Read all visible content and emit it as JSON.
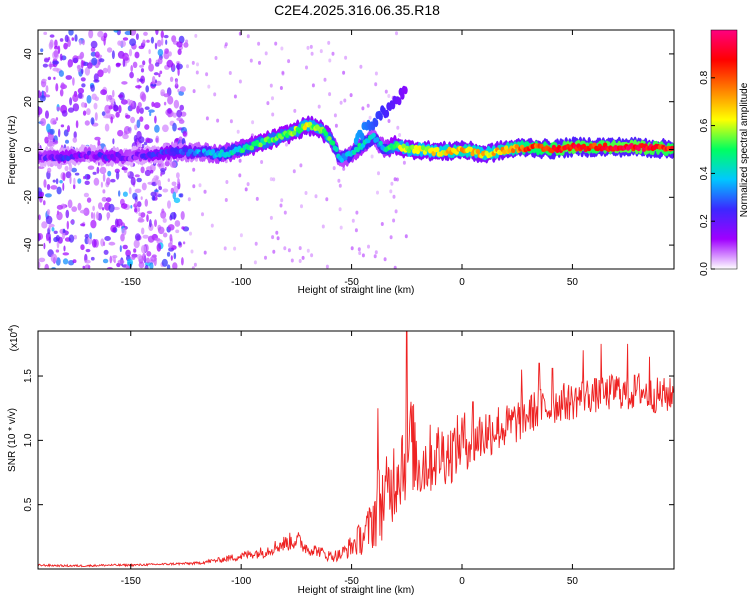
{
  "title": "C2E4.2025.316.06.35.R18",
  "chart_data": [
    {
      "type": "heatmap",
      "xlabel": "Height of straight line (km)",
      "ylabel": "Frequency (Hz)",
      "xlim": [
        -192,
        96
      ],
      "ylim": [
        -50,
        50
      ],
      "xticks": [
        -150,
        -100,
        -50,
        0,
        50
      ],
      "xtick_labels": [
        "-150",
        "-100",
        "-50",
        "0",
        "50"
      ],
      "yticks": [
        -40,
        -20,
        0,
        20,
        40
      ],
      "ytick_labels": [
        "-40",
        "-20",
        "0",
        "20",
        "40"
      ],
      "colorbar": {
        "label": "Normalized spectral amplitude",
        "range": [
          0,
          1
        ],
        "ticks": [
          0.0,
          0.2,
          0.4,
          0.6,
          0.8
        ],
        "tick_labels": [
          "0.0",
          "0.2",
          "0.4",
          "0.6",
          "0.8"
        ],
        "colors": [
          "#ffffff",
          "#a000ff",
          "#3c28ff",
          "#00c8ff",
          "#00ff60",
          "#ffff00",
          "#ff8000",
          "#ff0000",
          "#ff0080"
        ]
      },
      "ridge": {
        "x": [
          -192,
          -180,
          -170,
          -160,
          -150,
          -140,
          -130,
          -120,
          -110,
          -100,
          -90,
          -80,
          -75,
          -70,
          -65,
          -60,
          -55,
          -50,
          -45,
          -40,
          -35,
          -30,
          -25,
          -20,
          -10,
          0,
          10,
          20,
          30,
          40,
          50,
          60,
          70,
          80,
          96
        ],
        "y": [
          -3,
          -3,
          -2,
          -3,
          -3,
          -2,
          -1,
          -1,
          -2,
          0,
          3,
          6,
          8,
          10,
          9,
          5,
          -4,
          -2,
          2,
          5,
          0,
          2,
          0,
          0,
          -1,
          0,
          -2,
          0,
          1,
          0,
          1,
          1,
          1,
          1,
          0
        ],
        "amplitude": [
          0.15,
          0.2,
          0.15,
          0.2,
          0.15,
          0.2,
          0.25,
          0.3,
          0.4,
          0.45,
          0.5,
          0.5,
          0.55,
          0.6,
          0.55,
          0.5,
          0.35,
          0.4,
          0.45,
          0.35,
          0.4,
          0.55,
          0.6,
          0.6,
          0.65,
          0.7,
          0.65,
          0.7,
          0.8,
          0.85,
          0.9,
          0.85,
          0.9,
          0.9,
          0.85
        ]
      },
      "branch": {
        "x": [
          -48,
          -42,
          -36,
          -30,
          -25
        ],
        "y": [
          5,
          10,
          15,
          20,
          25
        ],
        "amplitude": [
          0.35,
          0.3,
          0.25,
          0.2,
          0.15
        ]
      },
      "noise_region_x": [
        -192,
        -125
      ]
    },
    {
      "type": "line",
      "xlabel": "Height of straight line (km)",
      "ylabel": "SNR (10 * v/v)",
      "y_multiplier_label": "(x10",
      "y_multiplier_exponent": "4",
      "xlim": [
        -192,
        96
      ],
      "ylim": [
        0,
        18500
      ],
      "xticks": [
        -150,
        -100,
        -50,
        0,
        50
      ],
      "xtick_labels": [
        "-150",
        "-100",
        "-50",
        "0",
        "50"
      ],
      "yticks": [
        5000,
        10000,
        15000
      ],
      "ytick_labels": [
        "0.5",
        "1.0",
        "1.5"
      ],
      "series": [
        {
          "name": "SNR",
          "color": "#ee2222",
          "x": [
            -192,
            -180,
            -170,
            -160,
            -150,
            -140,
            -130,
            -120,
            -110,
            -100,
            -95,
            -90,
            -85,
            -80,
            -75,
            -70,
            -65,
            -60,
            -55,
            -50,
            -45,
            -42,
            -40,
            -38,
            -35,
            -32,
            -30,
            -28,
            -25,
            -22,
            -20,
            -15,
            -10,
            -5,
            0,
            5,
            10,
            15,
            20,
            25,
            30,
            35,
            40,
            45,
            50,
            55,
            60,
            65,
            70,
            75,
            80,
            85,
            90,
            96
          ],
          "y": [
            300,
            250,
            250,
            300,
            300,
            350,
            400,
            450,
            700,
            1000,
            1200,
            1300,
            1700,
            2000,
            2300,
            1600,
            1400,
            1000,
            1100,
            1800,
            2500,
            3200,
            4000,
            5000,
            5500,
            6500,
            7500,
            8500,
            9000,
            9500,
            8000,
            8500,
            9000,
            9000,
            10000,
            10000,
            10500,
            11000,
            11000,
            11500,
            12000,
            12500,
            12500,
            13000,
            13000,
            13500,
            13500,
            13500,
            14000,
            13500,
            14000,
            13500,
            13500,
            13500
          ],
          "noise": [
            80,
            80,
            80,
            80,
            80,
            80,
            90,
            100,
            200,
            350,
            400,
            450,
            550,
            650,
            800,
            550,
            450,
            450,
            500,
            900,
            1400,
            1800,
            2600,
            3200,
            3000,
            3200,
            3600,
            4000,
            3800,
            3600,
            3000,
            2800,
            2600,
            2400,
            2400,
            2200,
            2200,
            2000,
            1800,
            1800,
            1600,
            1600,
            1500,
            1500,
            1500,
            1400,
            1400,
            1400,
            1400,
            1400,
            1400,
            1400,
            1400,
            1400
          ],
          "peaks": [
            [
              -38,
              12500
            ],
            [
              -25,
              18500
            ],
            [
              -23,
              13000
            ],
            [
              5,
              13000
            ],
            [
              12,
              10000
            ],
            [
              27,
              15500
            ],
            [
              35,
              16000
            ],
            [
              41,
              15600
            ],
            [
              55,
              17000
            ],
            [
              63,
              17500
            ],
            [
              75,
              17500
            ],
            [
              85,
              16500
            ]
          ]
        }
      ]
    }
  ]
}
